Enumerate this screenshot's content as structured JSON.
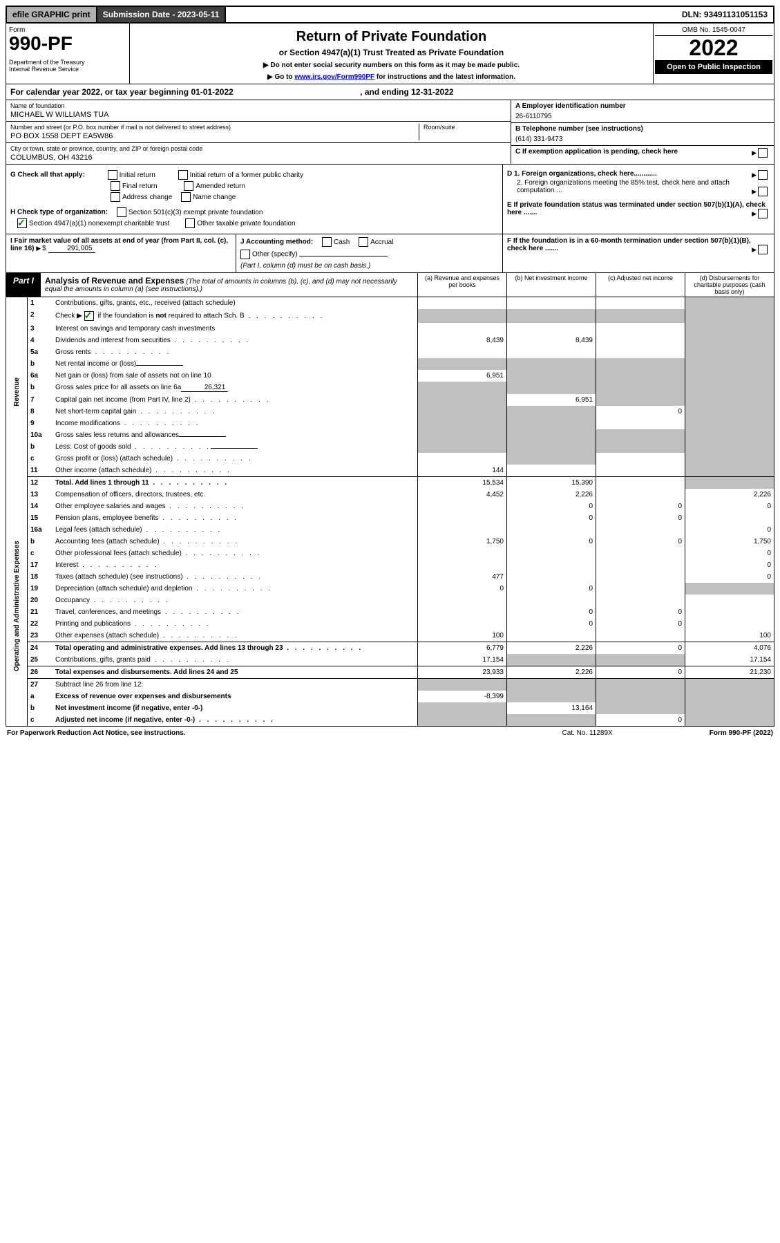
{
  "top": {
    "efile": "efile GRAPHIC print",
    "submission": "Submission Date - 2023-05-11",
    "dln": "DLN: 93491131051153"
  },
  "header": {
    "form_word": "Form",
    "form_number": "990-PF",
    "dept": "Department of the Treasury\nInternal Revenue Service",
    "title": "Return of Private Foundation",
    "subtitle": "or Section 4947(a)(1) Trust Treated as Private Foundation",
    "instr1": "▶ Do not enter social security numbers on this form as it may be made public.",
    "instr2_pre": "▶ Go to ",
    "instr2_link": "www.irs.gov/Form990PF",
    "instr2_post": " for instructions and the latest information.",
    "omb": "OMB No. 1545-0047",
    "year": "2022",
    "open": "Open to Public Inspection"
  },
  "calendar_year": "For calendar year 2022, or tax year beginning 01-01-2022",
  "calendar_year_end": ", and ending 12-31-2022",
  "id": {
    "name_label": "Name of foundation",
    "name": "MICHAEL W WILLIAMS TUA",
    "addr_label": "Number and street (or P.O. box number if mail is not delivered to street address)",
    "addr": "PO BOX 1558 DEPT EA5W86",
    "room_label": "Room/suite",
    "city_label": "City or town, state or province, country, and ZIP or foreign postal code",
    "city": "COLUMBUS, OH  43216",
    "ein_label": "A Employer identification number",
    "ein": "26-6110795",
    "tel_label": "B Telephone number (see instructions)",
    "tel": "(614) 331-9473",
    "c_label": "C If exemption application is pending, check here",
    "d1": "D 1. Foreign organizations, check here............",
    "d2": "2. Foreign organizations meeting the 85% test, check here and attach computation ...",
    "e": "E If private foundation status was terminated under section 507(b)(1)(A), check here .......",
    "f": "F If the foundation is in a 60-month termination under section 507(b)(1)(B), check here .......",
    "g_label": "G Check all that apply:",
    "g_opts": [
      "Initial return",
      "Initial return of a former public charity",
      "Final return",
      "Amended return",
      "Address change",
      "Name change"
    ],
    "h_label": "H Check type of organization:",
    "h_opts": [
      "Section 501(c)(3) exempt private foundation",
      "Section 4947(a)(1) nonexempt charitable trust",
      "Other taxable private foundation"
    ],
    "i_label": "I Fair market value of all assets at end of year (from Part II, col. (c), line 16)",
    "i_value": "291,005",
    "j_label": "J Accounting method:",
    "j_opts": [
      "Cash",
      "Accrual",
      "Other (specify)"
    ],
    "j_note": "(Part I, column (d) must be on cash basis.)"
  },
  "part1": {
    "label": "Part I",
    "title": "Analysis of Revenue and Expenses",
    "title_note": "(The total of amounts in columns (b), (c), and (d) may not necessarily equal the amounts in column (a) (see instructions).)",
    "cols": {
      "a": "(a) Revenue and expenses per books",
      "b": "(b) Net investment income",
      "c": "(c) Adjusted net income",
      "d": "(d) Disbursements for charitable purposes (cash basis only)"
    }
  },
  "sides": {
    "revenue": "Revenue",
    "expenses": "Operating and Administrative Expenses"
  },
  "rows": [
    {
      "n": "1",
      "d": "Contributions, gifts, grants, etc., received (attach schedule)",
      "a": "",
      "b": "",
      "c": "",
      "dd": "",
      "shade_d": true
    },
    {
      "n": "2",
      "d": "Check ▶ ☑ if the foundation is not required to attach Sch. B",
      "a": "",
      "b": "",
      "c": "",
      "dd": "",
      "shade_all": true,
      "bold_not": true,
      "dots": true
    },
    {
      "n": "3",
      "d": "Interest on savings and temporary cash investments",
      "a": "",
      "b": "",
      "c": "",
      "dd": "",
      "shade_d": true
    },
    {
      "n": "4",
      "d": "Dividends and interest from securities",
      "a": "8,439",
      "b": "8,439",
      "c": "",
      "dd": "",
      "shade_d": true,
      "dots": true
    },
    {
      "n": "5a",
      "d": "Gross rents",
      "a": "",
      "b": "",
      "c": "",
      "dd": "",
      "shade_d": true,
      "dots": true
    },
    {
      "n": "b",
      "d": "Net rental income or (loss)",
      "a": "",
      "b": "",
      "c": "",
      "dd": "",
      "shade_abcd": true,
      "inline": ""
    },
    {
      "n": "6a",
      "d": "Net gain or (loss) from sale of assets not on line 10",
      "a": "6,951",
      "b": "",
      "c": "",
      "dd": "",
      "shade_bcd": true
    },
    {
      "n": "b",
      "d": "Gross sales price for all assets on line 6a",
      "a": "",
      "b": "",
      "c": "",
      "dd": "",
      "shade_abcd": true,
      "inline": "26,321"
    },
    {
      "n": "7",
      "d": "Capital gain net income (from Part IV, line 2)",
      "a": "",
      "b": "6,951",
      "c": "",
      "dd": "",
      "shade_a": true,
      "shade_cd": true,
      "dots": true
    },
    {
      "n": "8",
      "d": "Net short-term capital gain",
      "a": "",
      "b": "",
      "c": "0",
      "dd": "",
      "shade_ab": true,
      "shade_d": true,
      "dots": true
    },
    {
      "n": "9",
      "d": "Income modifications",
      "a": "",
      "b": "",
      "c": "",
      "dd": "",
      "shade_ab": true,
      "shade_d": true,
      "dots": true
    },
    {
      "n": "10a",
      "d": "Gross sales less returns and allowances",
      "a": "",
      "b": "",
      "c": "",
      "dd": "",
      "shade_abcd": true,
      "inline": ""
    },
    {
      "n": "b",
      "d": "Less: Cost of goods sold",
      "a": "",
      "b": "",
      "c": "",
      "dd": "",
      "shade_abcd": true,
      "inline": "",
      "dots": true
    },
    {
      "n": "c",
      "d": "Gross profit or (loss) (attach schedule)",
      "a": "",
      "b": "",
      "c": "",
      "dd": "",
      "shade_b": true,
      "shade_d": true,
      "dots": true
    },
    {
      "n": "11",
      "d": "Other income (attach schedule)",
      "a": "144",
      "b": "",
      "c": "",
      "dd": "",
      "shade_d": true,
      "dots": true
    },
    {
      "n": "12",
      "d": "Total. Add lines 1 through 11",
      "a": "15,534",
      "b": "15,390",
      "c": "",
      "dd": "",
      "shade_d": true,
      "bold": true,
      "dots": true,
      "topborder": true
    },
    {
      "n": "13",
      "d": "Compensation of officers, directors, trustees, etc.",
      "a": "4,452",
      "b": "2,226",
      "c": "",
      "dd": "2,226",
      "section": "expenses"
    },
    {
      "n": "14",
      "d": "Other employee salaries and wages",
      "a": "",
      "b": "0",
      "c": "0",
      "dd": "0",
      "dots": true
    },
    {
      "n": "15",
      "d": "Pension plans, employee benefits",
      "a": "",
      "b": "0",
      "c": "0",
      "dd": "",
      "dots": true
    },
    {
      "n": "16a",
      "d": "Legal fees (attach schedule)",
      "a": "",
      "b": "",
      "c": "",
      "dd": "0",
      "dots": true
    },
    {
      "n": "b",
      "d": "Accounting fees (attach schedule)",
      "a": "1,750",
      "b": "0",
      "c": "0",
      "dd": "1,750",
      "dots": true
    },
    {
      "n": "c",
      "d": "Other professional fees (attach schedule)",
      "a": "",
      "b": "",
      "c": "",
      "dd": "0",
      "dots": true
    },
    {
      "n": "17",
      "d": "Interest",
      "a": "",
      "b": "",
      "c": "",
      "dd": "0",
      "dots": true
    },
    {
      "n": "18",
      "d": "Taxes (attach schedule) (see instructions)",
      "a": "477",
      "b": "",
      "c": "",
      "dd": "0",
      "dots": true
    },
    {
      "n": "19",
      "d": "Depreciation (attach schedule) and depletion",
      "a": "0",
      "b": "0",
      "c": "",
      "dd": "",
      "shade_d": true,
      "dots": true
    },
    {
      "n": "20",
      "d": "Occupancy",
      "a": "",
      "b": "",
      "c": "",
      "dd": "",
      "dots": true
    },
    {
      "n": "21",
      "d": "Travel, conferences, and meetings",
      "a": "",
      "b": "0",
      "c": "0",
      "dd": "",
      "dots": true
    },
    {
      "n": "22",
      "d": "Printing and publications",
      "a": "",
      "b": "0",
      "c": "0",
      "dd": "",
      "dots": true
    },
    {
      "n": "23",
      "d": "Other expenses (attach schedule)",
      "a": "100",
      "b": "",
      "c": "",
      "dd": "100",
      "dots": true
    },
    {
      "n": "24",
      "d": "Total operating and administrative expenses. Add lines 13 through 23",
      "a": "6,779",
      "b": "2,226",
      "c": "0",
      "dd": "4,076",
      "bold": true,
      "dots": true,
      "topborder": true
    },
    {
      "n": "25",
      "d": "Contributions, gifts, grants paid",
      "a": "17,154",
      "b": "",
      "c": "",
      "dd": "17,154",
      "shade_bc": true,
      "dots": true
    },
    {
      "n": "26",
      "d": "Total expenses and disbursements. Add lines 24 and 25",
      "a": "23,933",
      "b": "2,226",
      "c": "0",
      "dd": "21,230",
      "bold": true,
      "topborder": true
    },
    {
      "n": "27",
      "d": "Subtract line 26 from line 12:",
      "a": "",
      "b": "",
      "c": "",
      "dd": "",
      "shade_abcd": true,
      "topborder": true
    },
    {
      "n": "a",
      "d": "Excess of revenue over expenses and disbursements",
      "a": "-8,399",
      "b": "",
      "c": "",
      "dd": "",
      "shade_bcd": true,
      "bold": true
    },
    {
      "n": "b",
      "d": "Net investment income (if negative, enter -0-)",
      "a": "",
      "b": "13,164",
      "c": "",
      "dd": "",
      "shade_a": true,
      "shade_cd": true,
      "bold": true
    },
    {
      "n": "c",
      "d": "Adjusted net income (if negative, enter -0-)",
      "a": "",
      "b": "",
      "c": "0",
      "dd": "",
      "shade_ab": true,
      "shade_d": true,
      "bold": true,
      "dots": true
    }
  ],
  "footer": {
    "left": "For Paperwork Reduction Act Notice, see instructions.",
    "mid": "Cat. No. 11289X",
    "right": "Form 990-PF (2022)"
  },
  "colors": {
    "shade": "#c0c0c0",
    "link": "#0000cc",
    "check": "#008000"
  }
}
